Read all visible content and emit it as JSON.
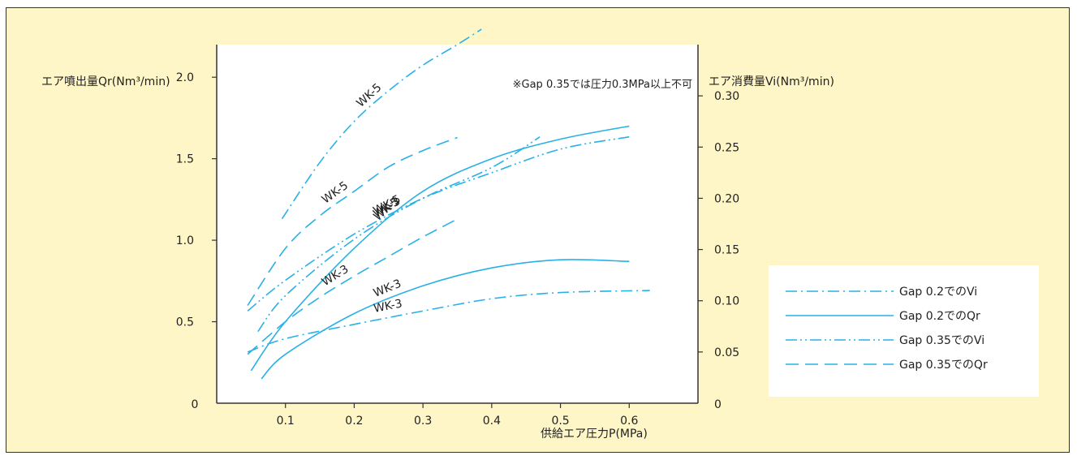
{
  "colors": {
    "background": "#fff6c7",
    "plot": "#ffffff",
    "line": "#29b1e6",
    "text": "#222222"
  },
  "chart_data": {
    "type": "line",
    "xlabel": "供給エア圧力P(MPa)",
    "ylabel": "エア噴出量Qr(Nm³/min)",
    "y2label": "エア消費量Vi(Nm³/min)",
    "note": "※Gap 0.35では圧力0.3MPa以上不可",
    "xlim": [
      0,
      0.7
    ],
    "ylim": [
      0,
      2.2
    ],
    "y2lim": [
      0,
      0.35
    ],
    "x_ticks": [
      "0.1",
      "0.2",
      "0.3",
      "0.4",
      "0.5",
      "0.6"
    ],
    "y_ticks": [
      "0",
      "0.5",
      "1.0",
      "1.5",
      "2.0"
    ],
    "y2_ticks": [
      "0",
      "0.05",
      "0.10",
      "0.15",
      "0.20",
      "0.25",
      "0.30"
    ],
    "legend_position": "right",
    "legend": [
      {
        "label": "Gap 0.2でのVi",
        "style": "dashdot"
      },
      {
        "label": "Gap 0.2でのQr",
        "style": "solid"
      },
      {
        "label": "Gap 0.35でのVi",
        "style": "dashdotdot"
      },
      {
        "label": "Gap 0.35でのQr",
        "style": "dashed"
      }
    ],
    "series": [
      {
        "name": "Gap 0.2でのVi",
        "curve_label": "WK-5",
        "style": "dashdot",
        "axis": "y2",
        "x": [
          0.095,
          0.15,
          0.2,
          0.25,
          0.3,
          0.35,
          0.385
        ],
        "y": [
          0.18,
          0.235,
          0.275,
          0.305,
          0.33,
          0.35,
          0.365
        ]
      },
      {
        "name": "Gap 0.2でのVi",
        "curve_label": "WK-3",
        "style": "dashdot",
        "axis": "y2",
        "x": [
          0.045,
          0.1,
          0.2,
          0.3,
          0.4,
          0.5,
          0.63
        ],
        "y": [
          0.05,
          0.063,
          0.077,
          0.09,
          0.102,
          0.108,
          0.11
        ]
      },
      {
        "name": "Gap 0.2でのQr",
        "curve_label": "WK-5",
        "style": "solid",
        "axis": "y",
        "x": [
          0.05,
          0.1,
          0.2,
          0.3,
          0.4,
          0.5,
          0.6
        ],
        "y": [
          0.2,
          0.5,
          0.95,
          1.3,
          1.5,
          1.62,
          1.7
        ]
      },
      {
        "name": "Gap 0.2でのQr",
        "curve_label": "WK-3",
        "style": "solid",
        "axis": "y",
        "x": [
          0.065,
          0.1,
          0.2,
          0.3,
          0.4,
          0.5,
          0.6
        ],
        "y": [
          0.15,
          0.3,
          0.55,
          0.72,
          0.83,
          0.88,
          0.87
        ]
      },
      {
        "name": "Gap 0.35でのVi",
        "curve_label": "WK-5",
        "style": "dashdotdot",
        "axis": "y2",
        "x": [
          0.045,
          0.1,
          0.2,
          0.3,
          0.4,
          0.5,
          0.6
        ],
        "y": [
          0.09,
          0.12,
          0.165,
          0.2,
          0.225,
          0.248,
          0.26
        ]
      },
      {
        "name": "Gap 0.35でのVi",
        "curve_label": "WK-3",
        "style": "dashdotdot",
        "axis": "y2",
        "x": [
          0.06,
          0.1,
          0.2,
          0.3,
          0.4,
          0.47
        ],
        "y": [
          0.07,
          0.105,
          0.16,
          0.2,
          0.23,
          0.26
        ]
      },
      {
        "name": "Gap 0.35でのQr",
        "curve_label": "WK-5",
        "style": "dashed",
        "axis": "y",
        "x": [
          0.045,
          0.1,
          0.15,
          0.2,
          0.25,
          0.3,
          0.35
        ],
        "y": [
          0.6,
          0.95,
          1.15,
          1.3,
          1.45,
          1.55,
          1.63
        ]
      },
      {
        "name": "Gap 0.35でのQr",
        "curve_label": "WK-3",
        "style": "dashed",
        "axis": "y",
        "x": [
          0.045,
          0.1,
          0.15,
          0.2,
          0.25,
          0.3,
          0.35
        ],
        "y": [
          0.3,
          0.5,
          0.65,
          0.78,
          0.9,
          1.02,
          1.13
        ]
      }
    ]
  }
}
